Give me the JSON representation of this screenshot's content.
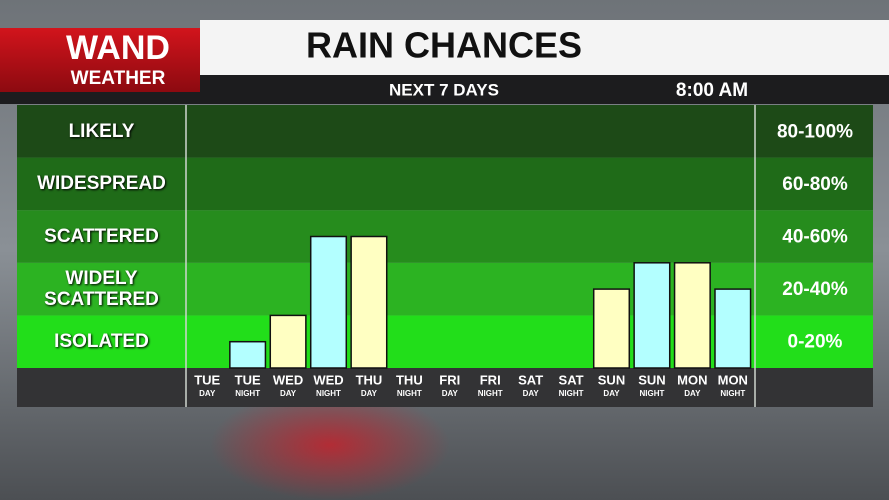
{
  "header": {
    "logo_top": "WAND",
    "logo_bottom": "WEATHER",
    "title": "RAIN CHANCES",
    "subtitle": "NEXT 7 DAYS",
    "time": "8:00 AM"
  },
  "chart_data": {
    "type": "bar",
    "categories": [
      "TUE",
      "TUE",
      "WED",
      "WED",
      "THU",
      "THU",
      "FRI",
      "FRI",
      "SAT",
      "SAT",
      "SUN",
      "SUN",
      "MON",
      "MON"
    ],
    "category_sublabels": [
      "DAY",
      "NIGHT",
      "DAY",
      "NIGHT",
      "DAY",
      "NIGHT",
      "DAY",
      "NIGHT",
      "DAY",
      "NIGHT",
      "DAY",
      "NIGHT",
      "DAY",
      "NIGHT"
    ],
    "values": [
      0,
      10,
      20,
      50,
      50,
      0,
      0,
      0,
      0,
      0,
      30,
      40,
      40,
      30
    ],
    "colors": [
      "#ffffc2",
      "#b3ffff",
      "#ffffc2",
      "#b3ffff",
      "#ffffc2",
      "#b3ffff",
      "#ffffc2",
      "#b3ffff",
      "#ffffc2",
      "#b3ffff",
      "#ffffc2",
      "#b3ffff",
      "#ffffc2",
      "#b3ffff"
    ],
    "ylim": [
      0,
      100
    ],
    "bands": [
      {
        "label": "LIKELY",
        "range": "80-100%",
        "from": 80,
        "to": 100,
        "color": "#1d4a17"
      },
      {
        "label": "WIDESPREAD",
        "range": "60-80%",
        "from": 60,
        "to": 80,
        "color": "#1f6b18"
      },
      {
        "label": "SCATTERED",
        "range": "40-60%",
        "from": 40,
        "to": 60,
        "color": "#268c1d"
      },
      {
        "label": "WIDELY SCATTERED",
        "range": "20-40%",
        "from": 20,
        "to": 40,
        "color": "#2cb322"
      },
      {
        "label": "ISOLATED",
        "range": "0-20%",
        "from": 0,
        "to": 20,
        "color": "#22de1a"
      }
    ]
  }
}
